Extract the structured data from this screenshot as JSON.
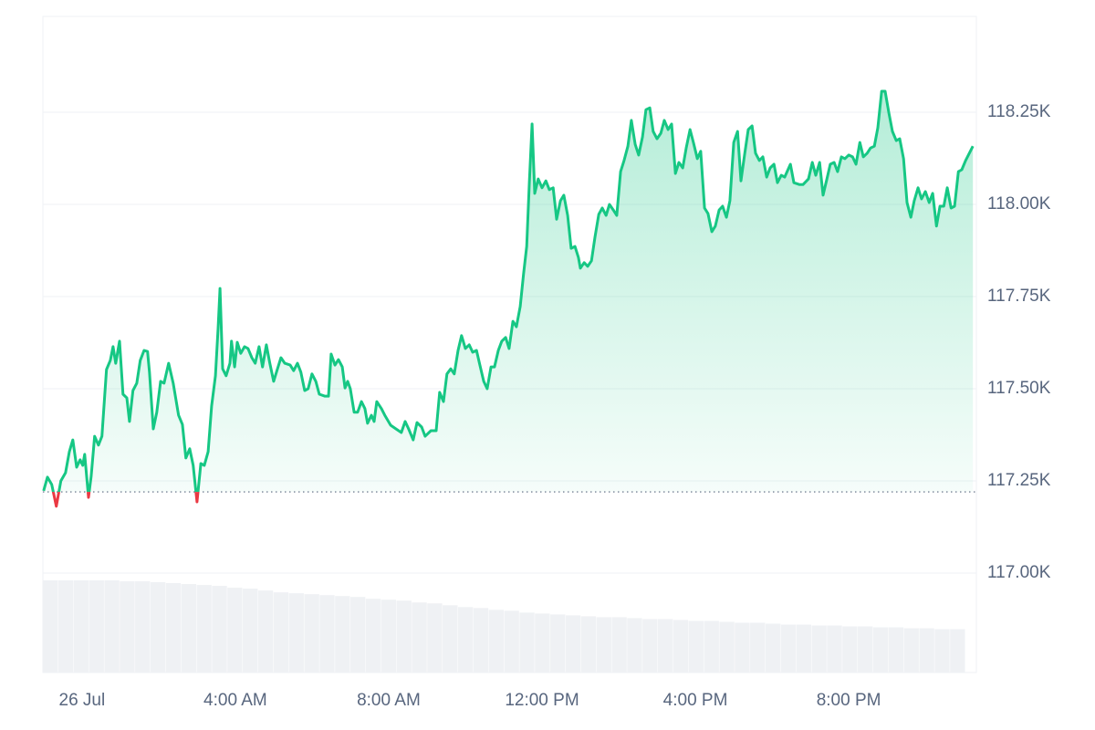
{
  "chart_data": {
    "type": "line",
    "x": [
      -1.0,
      -0.9,
      -0.79,
      -0.67,
      -0.55,
      -0.43,
      -0.33,
      -0.24,
      -0.14,
      -0.05,
      0.02,
      0.07,
      0.17,
      0.24,
      0.33,
      0.43,
      0.52,
      0.64,
      0.74,
      0.81,
      0.88,
      0.98,
      1.07,
      1.17,
      1.24,
      1.33,
      1.43,
      1.52,
      1.62,
      1.71,
      1.76,
      1.86,
      1.95,
      2.05,
      2.14,
      2.26,
      2.38,
      2.52,
      2.62,
      2.71,
      2.81,
      2.9,
      3.0,
      3.1,
      3.19,
      3.29,
      3.38,
      3.48,
      3.55,
      3.6,
      3.67,
      3.76,
      3.86,
      3.9,
      3.98,
      4.05,
      4.14,
      4.24,
      4.33,
      4.43,
      4.52,
      4.62,
      4.71,
      4.81,
      4.9,
      5.0,
      5.1,
      5.19,
      5.29,
      5.43,
      5.52,
      5.62,
      5.71,
      5.81,
      5.9,
      6.0,
      6.1,
      6.19,
      6.33,
      6.43,
      6.5,
      6.6,
      6.69,
      6.79,
      6.86,
      6.93,
      7.0,
      7.1,
      7.19,
      7.29,
      7.38,
      7.45,
      7.55,
      7.62,
      7.69,
      7.81,
      7.9,
      8.05,
      8.19,
      8.33,
      8.43,
      8.52,
      8.64,
      8.74,
      8.86,
      8.95,
      9.1,
      9.24,
      9.33,
      9.43,
      9.52,
      9.62,
      9.71,
      9.81,
      9.9,
      10.0,
      10.1,
      10.19,
      10.29,
      10.38,
      10.48,
      10.57,
      10.67,
      10.76,
      10.86,
      10.95,
      11.05,
      11.14,
      11.24,
      11.33,
      11.43,
      11.52,
      11.6,
      11.67,
      11.74,
      11.81,
      11.9,
      12.0,
      12.1,
      12.19,
      12.29,
      12.38,
      12.48,
      12.57,
      12.67,
      12.76,
      12.86,
      12.95,
      13.0,
      13.1,
      13.19,
      13.29,
      13.38,
      13.48,
      13.57,
      13.67,
      13.76,
      13.86,
      13.95,
      14.05,
      14.14,
      14.24,
      14.33,
      14.43,
      14.52,
      14.62,
      14.71,
      14.81,
      14.9,
      15.0,
      15.1,
      15.19,
      15.29,
      15.38,
      15.48,
      15.57,
      15.67,
      15.76,
      15.86,
      15.95,
      16.05,
      16.14,
      16.24,
      16.33,
      16.43,
      16.52,
      16.62,
      16.71,
      16.81,
      16.9,
      17.0,
      17.1,
      17.19,
      17.29,
      17.38,
      17.48,
      17.57,
      17.67,
      17.76,
      17.86,
      17.95,
      18.05,
      18.14,
      18.24,
      18.33,
      18.48,
      18.57,
      18.71,
      18.81,
      18.95,
      19.05,
      19.14,
      19.24,
      19.33,
      19.43,
      19.52,
      19.62,
      19.71,
      19.81,
      19.9,
      20.0,
      20.1,
      20.19,
      20.29,
      20.38,
      20.48,
      20.57,
      20.67,
      20.76,
      20.86,
      20.95,
      21.05,
      21.14,
      21.24,
      21.33,
      21.43,
      21.52,
      21.62,
      21.71,
      21.81,
      21.9,
      22.0,
      22.1,
      22.19,
      22.29,
      22.38,
      22.48,
      22.57,
      22.67,
      22.76,
      22.86,
      22.95,
      23.05,
      23.24
    ],
    "values": [
      117223,
      117260,
      117240,
      117181,
      117250,
      117272,
      117329,
      117361,
      117287,
      117307,
      117292,
      117322,
      117205,
      117262,
      117371,
      117347,
      117371,
      117552,
      117577,
      117614,
      117569,
      117629,
      117485,
      117475,
      117411,
      117495,
      117515,
      117577,
      117604,
      117601,
      117545,
      117391,
      117436,
      117520,
      117515,
      117569,
      117515,
      117428,
      117403,
      117312,
      117337,
      117292,
      117193,
      117297,
      117292,
      117329,
      117453,
      117535,
      117663,
      117772,
      117554,
      117535,
      117569,
      117629,
      117559,
      117626,
      117596,
      117614,
      117609,
      117584,
      117569,
      117614,
      117559,
      117619,
      117569,
      117520,
      117554,
      117584,
      117569,
      117564,
      117549,
      117569,
      117545,
      117495,
      117500,
      117540,
      117520,
      117485,
      117480,
      117480,
      117594,
      117564,
      117579,
      117559,
      117502,
      117520,
      117500,
      117436,
      117436,
      117465,
      117446,
      117406,
      117428,
      117411,
      117465,
      117446,
      117428,
      117401,
      117391,
      117381,
      117411,
      117391,
      117361,
      117408,
      117396,
      117371,
      117386,
      117386,
      117490,
      117465,
      117540,
      117554,
      117540,
      117604,
      117644,
      117609,
      117619,
      117599,
      117604,
      117564,
      117520,
      117500,
      117559,
      117559,
      117604,
      117629,
      117639,
      117609,
      117683,
      117668,
      117723,
      117812,
      117886,
      118059,
      118218,
      118030,
      118069,
      118045,
      118064,
      118040,
      118045,
      117960,
      118010,
      118025,
      117970,
      117881,
      117886,
      117856,
      117827,
      117842,
      117832,
      117847,
      117911,
      117973,
      117990,
      117970,
      118000,
      117985,
      117970,
      118089,
      118119,
      118158,
      118228,
      118163,
      118134,
      118183,
      118257,
      118262,
      118198,
      118178,
      118193,
      118228,
      118203,
      118218,
      118084,
      118114,
      118099,
      118153,
      118203,
      118168,
      118124,
      118144,
      117990,
      117975,
      117926,
      117941,
      117985,
      117995,
      117965,
      118010,
      118168,
      118198,
      118064,
      118139,
      118203,
      118213,
      118139,
      118119,
      118129,
      118074,
      118099,
      118109,
      118059,
      118079,
      118074,
      118109,
      118059,
      118054,
      118054,
      118069,
      118114,
      118079,
      118114,
      118025,
      118069,
      118109,
      118114,
      118089,
      118129,
      118124,
      118134,
      118129,
      118109,
      118168,
      118129,
      118139,
      118153,
      118158,
      118208,
      118307,
      118307,
      118247,
      118198,
      118173,
      118178,
      118124,
      118005,
      117965,
      118010,
      118045,
      118015,
      118035,
      118005,
      118030,
      117941,
      117995,
      117995,
      118045,
      117990,
      117995,
      118089,
      118094,
      118119,
      118158
    ],
    "baseline": 117220,
    "color_up": "#16c784",
    "color_down": "#ea3943",
    "xlim": [
      -1.02,
      23.33
    ],
    "ylim": [
      116730,
      118510
    ],
    "xticks": [
      {
        "value": 0,
        "label": "26 Jul"
      },
      {
        "value": 4,
        "label": "4:00 AM"
      },
      {
        "value": 8,
        "label": "8:00 AM"
      },
      {
        "value": 12,
        "label": "12:00 PM"
      },
      {
        "value": 16,
        "label": "4:00 PM"
      },
      {
        "value": 20,
        "label": "8:00 PM"
      }
    ],
    "yticks": [
      {
        "value": 117000,
        "label": "117.00K"
      },
      {
        "value": 117250,
        "label": "117.25K"
      },
      {
        "value": 117500,
        "label": "117.50K"
      },
      {
        "value": 117750,
        "label": "117.75K"
      },
      {
        "value": 118000,
        "label": "118.00K"
      },
      {
        "value": 118250,
        "label": "118.25K"
      }
    ],
    "grid": true,
    "volume": {
      "color": "#eff1f4",
      "vlim": [
        0,
        100
      ],
      "values": [
        100,
        100,
        100,
        100,
        100,
        99,
        99,
        98,
        97,
        96,
        95,
        94,
        92,
        91,
        89,
        87,
        86,
        85,
        84,
        83,
        82,
        80,
        79,
        78,
        76,
        75,
        73,
        71,
        70,
        68,
        67,
        65,
        64,
        63,
        62,
        61,
        60,
        60,
        59,
        58,
        58,
        57,
        56,
        56,
        55,
        54,
        54,
        53,
        52,
        52,
        51,
        51,
        50,
        50,
        49,
        49,
        48,
        48,
        47,
        47
      ]
    }
  }
}
